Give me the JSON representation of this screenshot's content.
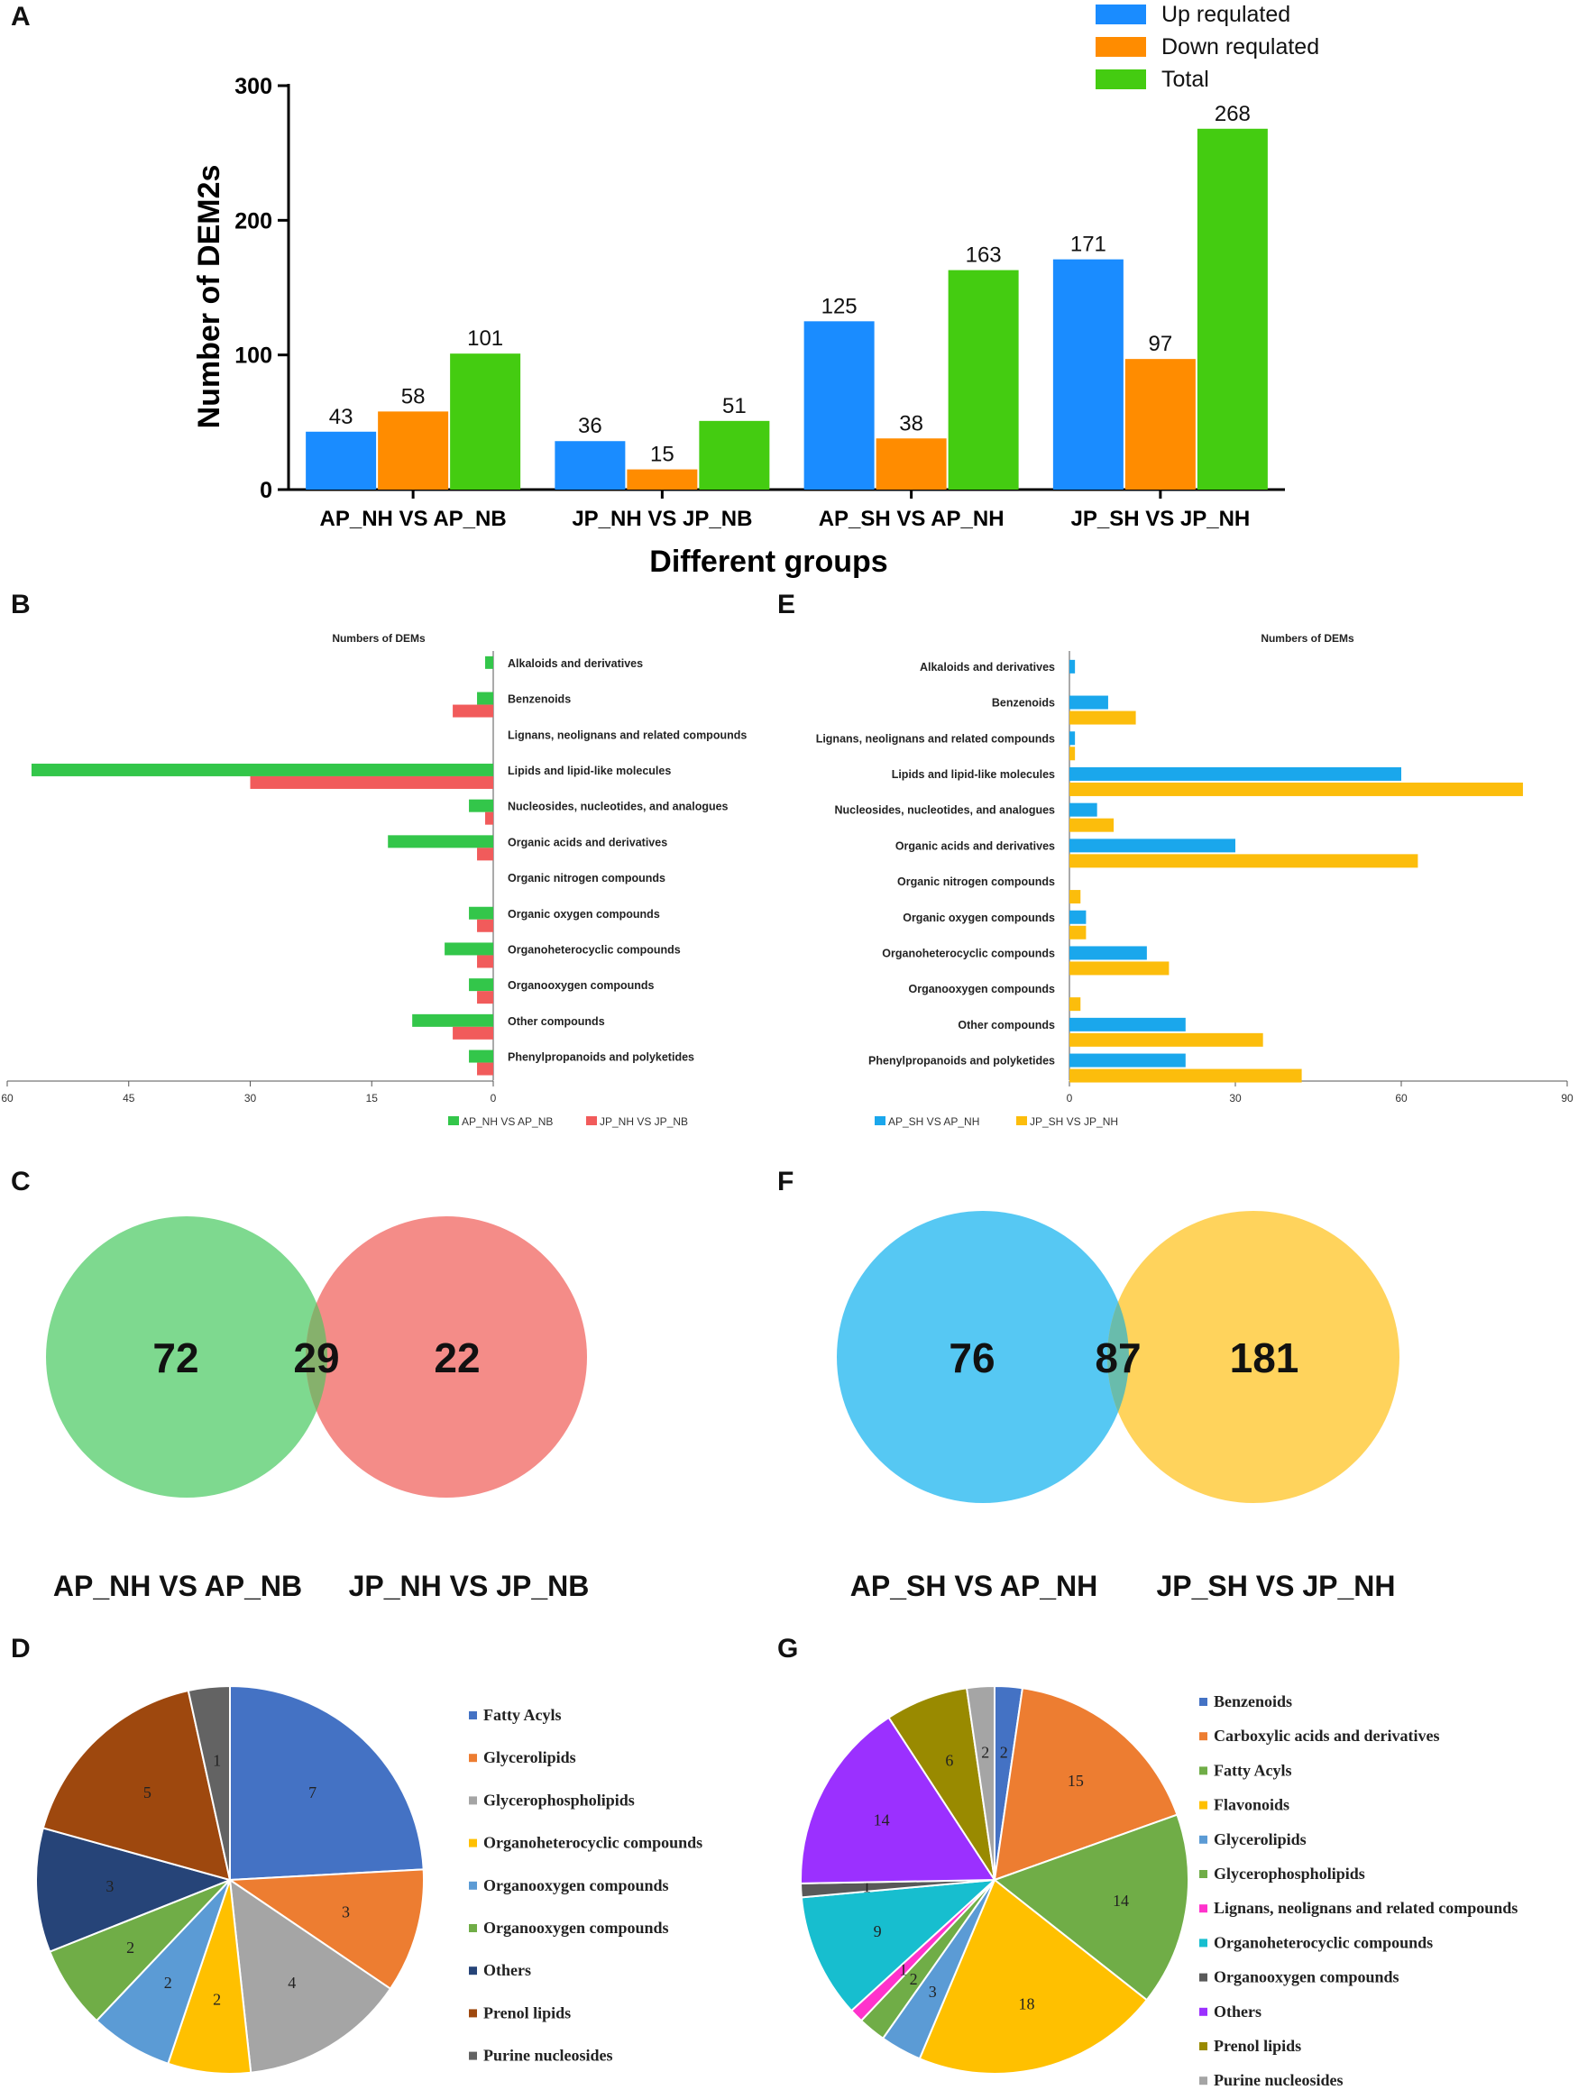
{
  "panels": {
    "A": "A",
    "B": "B",
    "C": "C",
    "D": "D",
    "E": "E",
    "F": "F",
    "G": "G"
  },
  "colors": {
    "up": "#1a8cff",
    "down": "#ff8c00",
    "total": "#44cc11",
    "green": "#33c64a",
    "red": "#f15b5b",
    "blue": "#1aa7ec",
    "gold": "#fcbd0c",
    "venn_green": "#7ed98f",
    "venn_red": "#f48c88",
    "venn_overlap_cf": "#86b16c",
    "venn_blue": "#56c8f3",
    "venn_gold": "#ffd35c",
    "venn_overlap_ef": "#69bcac",
    "pie_border": "#ffffff"
  },
  "chart_data": [
    {
      "id": "A",
      "type": "bar",
      "title": "",
      "xlabel": "Different groups",
      "ylabel": "Number of DEM2s",
      "ylim": [
        0,
        300
      ],
      "yticks": [
        0,
        100,
        200,
        300
      ],
      "categories": [
        "AP_NH VS AP_NB",
        "JP_NH VS JP_NB",
        "AP_SH VS AP_NH",
        "JP_SH VS JP_NH"
      ],
      "series": [
        {
          "name": "Up requlated",
          "values": [
            43,
            36,
            125,
            171
          ]
        },
        {
          "name": "Down requlated",
          "values": [
            58,
            15,
            38,
            97
          ]
        },
        {
          "name": "Total",
          "values": [
            101,
            51,
            163,
            268
          ]
        }
      ],
      "legend": "top-right"
    },
    {
      "id": "B",
      "type": "bar",
      "orientation": "horizontal-mirrored",
      "title": "Numbers of DEMs",
      "categories": [
        "Alkaloids and derivatives",
        "Benzenoids",
        "Lignans, neolignans and related compounds",
        "Lipids and lipid-like molecules",
        "Nucleosides, nucleotides, and analogues",
        "Organic acids and derivatives",
        "Organic nitrogen compounds",
        "Organic oxygen compounds",
        "Organoheterocyclic compounds",
        "Organooxygen compounds",
        "Other compounds",
        "Phenylpropanoids and polyketides"
      ],
      "series": [
        {
          "name": "AP_NH VS AP_NB",
          "values": [
            1,
            2,
            0,
            57,
            3,
            13,
            0,
            3,
            6,
            3,
            10,
            3
          ]
        },
        {
          "name": "JP_NH VS JP_NB",
          "values": [
            0,
            5,
            0,
            30,
            1,
            2,
            0,
            2,
            2,
            2,
            5,
            2
          ]
        }
      ],
      "xlim": [
        60,
        0
      ],
      "xticks": [
        60,
        45,
        30,
        15,
        0
      ],
      "legend": "bottom"
    },
    {
      "id": "E",
      "type": "bar",
      "orientation": "horizontal",
      "title": "Numbers of DEMs",
      "categories": [
        "Alkaloids and derivatives",
        "Benzenoids",
        "Lignans, neolignans and related compounds",
        "Lipids and lipid-like molecules",
        "Nucleosides, nucleotides, and analogues",
        "Organic acids and derivatives",
        "Organic nitrogen compounds",
        "Organic oxygen compounds",
        "Organoheterocyclic compounds",
        "Organooxygen compounds",
        "Other compounds",
        "Phenylpropanoids and polyketides"
      ],
      "series": [
        {
          "name": "AP_SH VS AP_NH",
          "values": [
            1,
            7,
            1,
            60,
            5,
            30,
            0,
            3,
            14,
            0,
            21,
            21
          ]
        },
        {
          "name": "JP_SH VS JP_NH",
          "values": [
            0,
            12,
            1,
            82,
            8,
            63,
            2,
            3,
            18,
            2,
            35,
            42
          ]
        }
      ],
      "xlim": [
        0,
        90
      ],
      "xticks": [
        0,
        30,
        60,
        90
      ],
      "legend": "bottom"
    },
    {
      "id": "C",
      "type": "venn",
      "sets": [
        "AP_NH VS AP_NB",
        "JP_NH VS JP_NB"
      ],
      "values": {
        "left_only": "72",
        "both": "29",
        "right_only": "22"
      }
    },
    {
      "id": "F",
      "type": "venn",
      "sets": [
        "AP_SH VS AP_NH",
        "JP_SH VS JP_NH"
      ],
      "values": {
        "left_only": "76",
        "both": "87",
        "right_only": "181"
      }
    },
    {
      "id": "D",
      "type": "pie",
      "slices": [
        {
          "label": "Fatty Acyls",
          "value": 7,
          "color": "#4472c4"
        },
        {
          "label": "Glycerolipids",
          "value": 3,
          "color": "#ed7d31"
        },
        {
          "label": "Glycerophospholipids",
          "value": 4,
          "color": "#a5a5a5"
        },
        {
          "label": "Organoheterocyclic compounds",
          "value": 2,
          "color": "#ffc000"
        },
        {
          "label": "Organooxygen compounds",
          "value": 2,
          "color": "#5b9bd5"
        },
        {
          "label": "Organooxygen compounds",
          "value": 2,
          "color": "#70ad47"
        },
        {
          "label": "Others",
          "value": 3,
          "color": "#264478"
        },
        {
          "label": "Prenol lipids",
          "value": 5,
          "color": "#9e480e"
        },
        {
          "label": "Purine nucleosides",
          "value": 1,
          "color": "#636363"
        }
      ]
    },
    {
      "id": "G",
      "type": "pie",
      "slices": [
        {
          "label": "Benzenoids",
          "value": 2,
          "color": "#4472c4"
        },
        {
          "label": "Carboxylic acids and derivatives",
          "value": 15,
          "color": "#ed7d31"
        },
        {
          "label": "Fatty Acyls",
          "value": 14,
          "color": "#70ad47"
        },
        {
          "label": "Flavonoids",
          "value": 18,
          "color": "#ffc000"
        },
        {
          "label": "Glycerolipids",
          "value": 3,
          "color": "#5b9bd5"
        },
        {
          "label": "Glycerophospholipids",
          "value": 2,
          "color": "#70ad47"
        },
        {
          "label": "Lignans, neolignans and related compounds",
          "value": 1,
          "color": "#ff33cc"
        },
        {
          "label": "Organoheterocyclic compounds",
          "value": 9,
          "color": "#17becf"
        },
        {
          "label": "Organooxygen compounds",
          "value": 1,
          "color": "#595959"
        },
        {
          "label": "Others",
          "value": 14,
          "color": "#9b30ff"
        },
        {
          "label": "Prenol lipids",
          "value": 6,
          "color": "#998a00"
        },
        {
          "label": "Purine nucleosides",
          "value": 2,
          "color": "#a5a5a5"
        }
      ]
    }
  ]
}
